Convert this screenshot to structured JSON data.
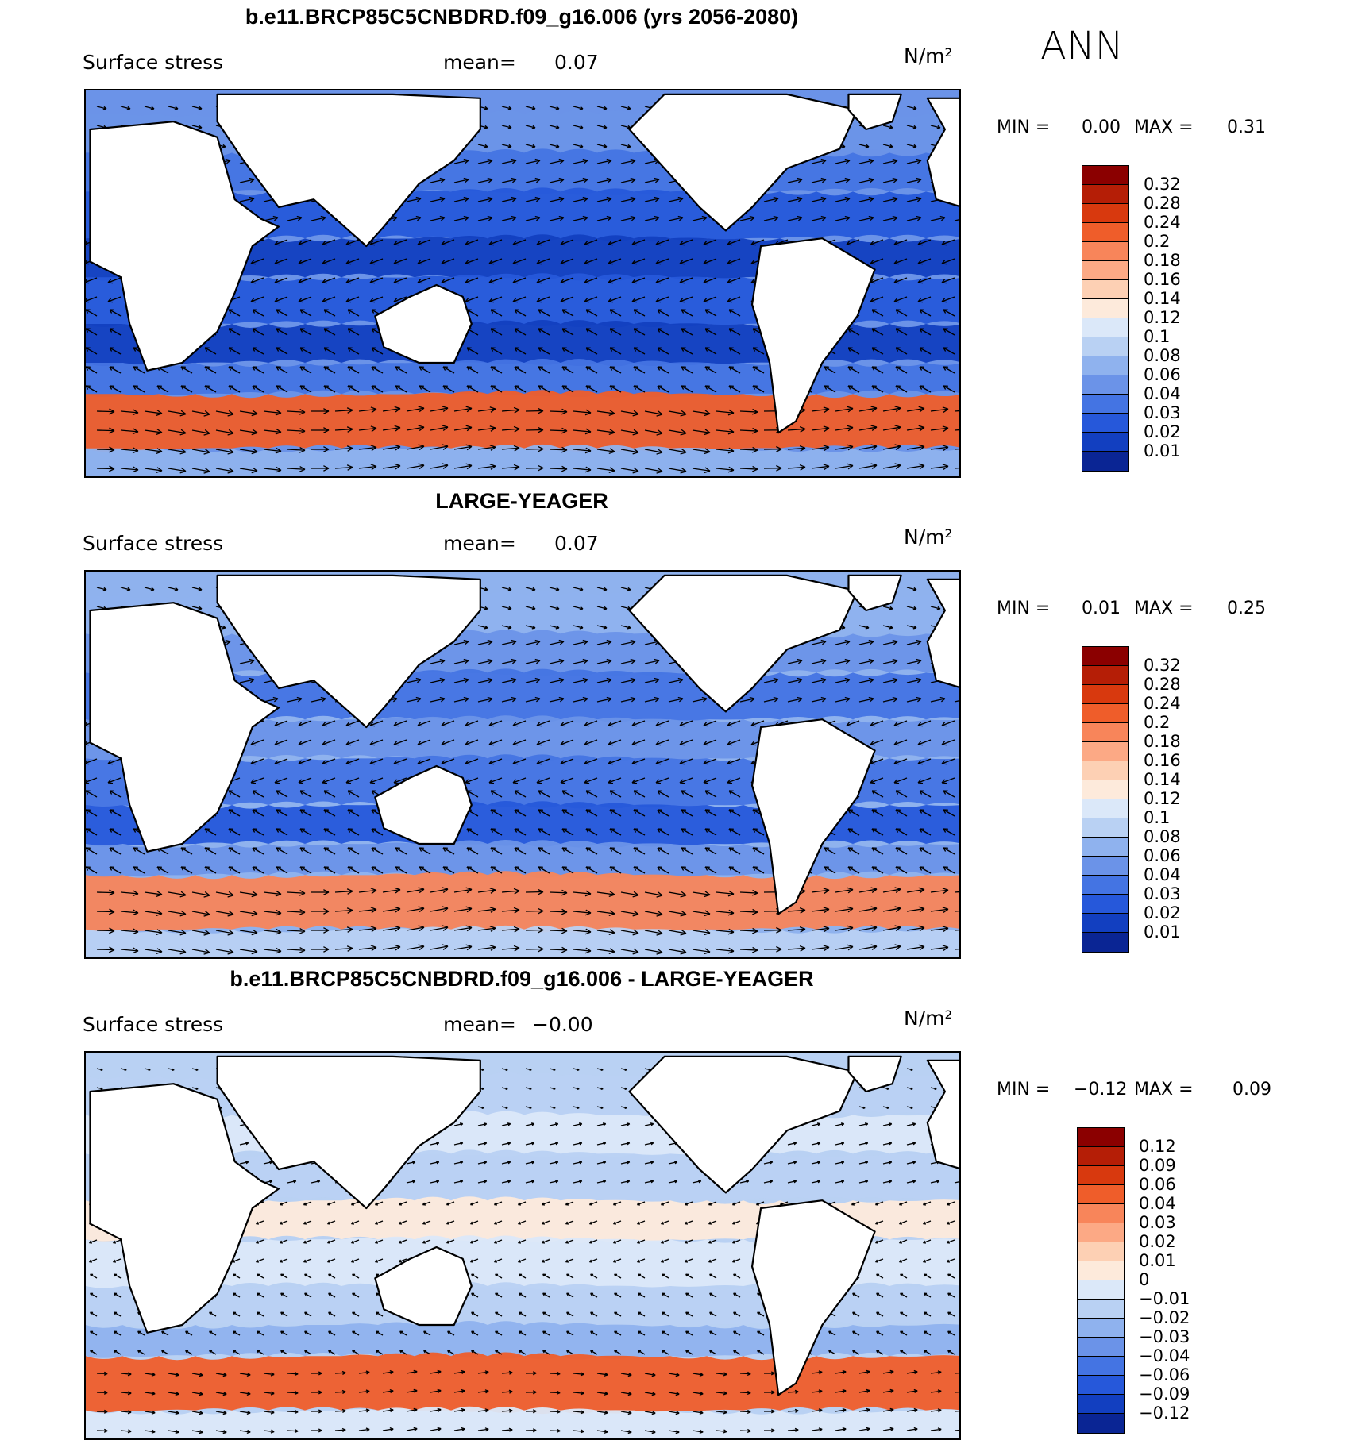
{
  "season": "ANN",
  "panels": [
    {
      "title": "b.e11.BRCP85C5CNBDRD.f09_g16.006 (yrs 2056-2080)",
      "variable": "Surface stress",
      "mean_label": "mean=",
      "mean_value": "0.07",
      "units": "N/m²",
      "min_label": "MIN =",
      "min_value": "0.00",
      "max_label": "MAX =",
      "max_value": "0.31",
      "colorbar_labels": [
        "0.32",
        "0.28",
        "0.24",
        "0.2",
        "0.18",
        "0.16",
        "0.14",
        "0.12",
        "0.1",
        "0.08",
        "0.06",
        "0.04",
        "0.03",
        "0.02",
        "0.01"
      ],
      "colorbar_colors": [
        "#8b0000",
        "#b51e06",
        "#d8390e",
        "#ef5d2a",
        "#f8855a",
        "#fca985",
        "#fdd0b4",
        "#fdeadb",
        "#dbe8f9",
        "#b9d1f3",
        "#8fb2ee",
        "#6b93e8",
        "#4474e3",
        "#2658da",
        "#123fc0",
        "#0a2594"
      ]
    },
    {
      "title": "LARGE-YEAGER",
      "variable": "Surface stress",
      "mean_label": "mean=",
      "mean_value": "0.07",
      "units": "N/m²",
      "min_label": "MIN =",
      "min_value": "0.01",
      "max_label": "MAX =",
      "max_value": "0.25",
      "colorbar_labels": [
        "0.32",
        "0.28",
        "0.24",
        "0.2",
        "0.18",
        "0.16",
        "0.14",
        "0.12",
        "0.1",
        "0.08",
        "0.06",
        "0.04",
        "0.03",
        "0.02",
        "0.01"
      ],
      "colorbar_colors": [
        "#8b0000",
        "#b51e06",
        "#d8390e",
        "#ef5d2a",
        "#f8855a",
        "#fca985",
        "#fdd0b4",
        "#fdeadb",
        "#dbe8f9",
        "#b9d1f3",
        "#8fb2ee",
        "#6b93e8",
        "#4474e3",
        "#2658da",
        "#123fc0",
        "#0a2594"
      ]
    },
    {
      "title": "b.e11.BRCP85C5CNBDRD.f09_g16.006 - LARGE-YEAGER",
      "variable": "Surface stress",
      "mean_label": "mean=",
      "mean_value": "−0.00",
      "units": "N/m²",
      "min_label": "MIN =",
      "min_value": "−0.12",
      "max_label": "MAX =",
      "max_value": "0.09",
      "colorbar_labels": [
        "0.12",
        "0.09",
        "0.06",
        "0.04",
        "0.03",
        "0.02",
        "0.01",
        "0",
        "−0.01",
        "−0.02",
        "−0.03",
        "−0.04",
        "−0.06",
        "−0.09",
        "−0.12"
      ],
      "colorbar_colors": [
        "#8b0000",
        "#b51e06",
        "#d8390e",
        "#ef5d2a",
        "#f8855a",
        "#fca985",
        "#fdd0b4",
        "#fdeadb",
        "#dbe8f9",
        "#b9d1f3",
        "#8fb2ee",
        "#6b93e8",
        "#4474e3",
        "#2658da",
        "#123fc0",
        "#0a2594"
      ]
    }
  ]
}
